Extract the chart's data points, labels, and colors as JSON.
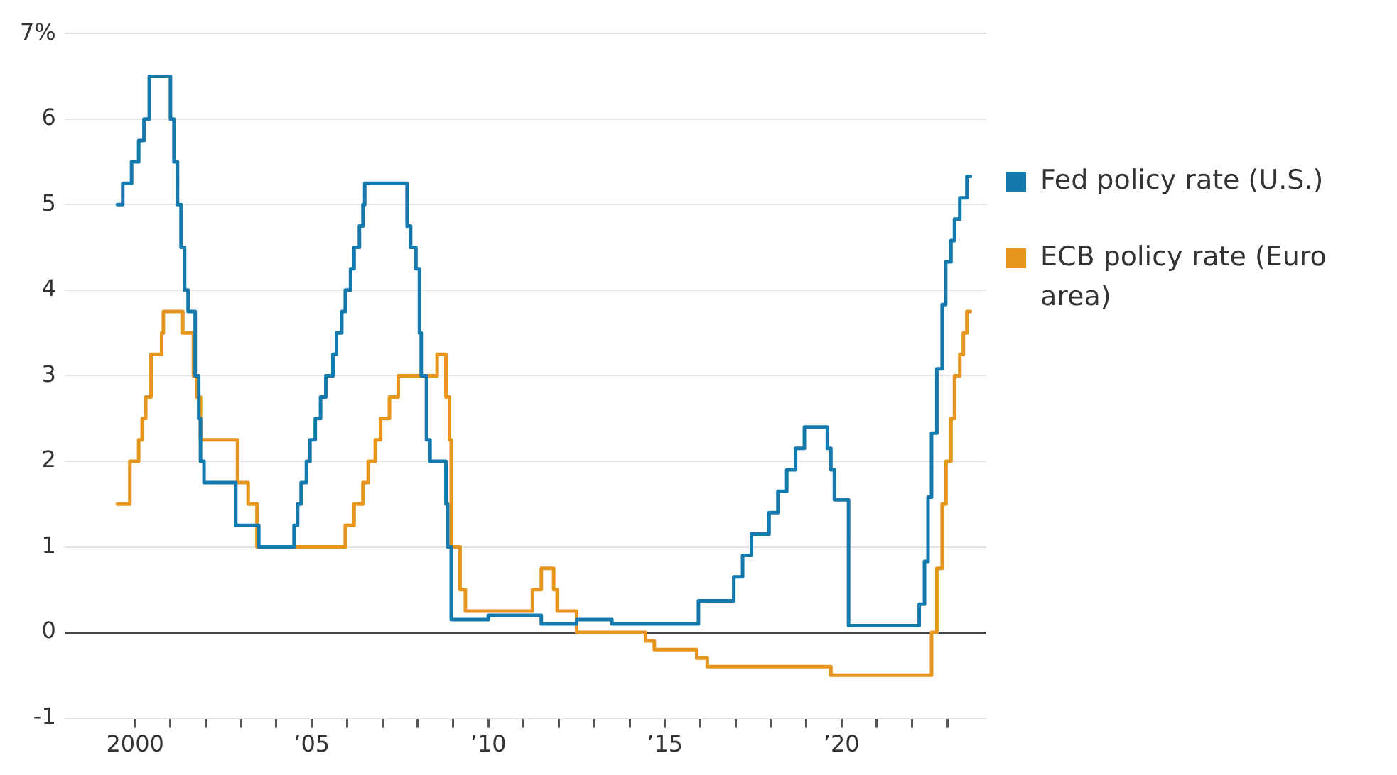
{
  "chart_data": {
    "type": "step",
    "xlim": [
      1998,
      2024.1
    ],
    "ylim": [
      -1,
      7
    ],
    "xticks": [
      2000,
      {
        "value": 2001,
        "label": null
      },
      {
        "value": 2002,
        "label": null
      },
      {
        "value": 2003,
        "label": null
      },
      {
        "value": 2004,
        "label": null
      },
      {
        "value": 2005,
        "label": "’05"
      },
      {
        "value": 2006,
        "label": null
      },
      {
        "value": 2007,
        "label": null
      },
      {
        "value": 2008,
        "label": null
      },
      {
        "value": 2009,
        "label": null
      },
      {
        "value": 2010,
        "label": "’10"
      },
      {
        "value": 2011,
        "label": null
      },
      {
        "value": 2012,
        "label": null
      },
      {
        "value": 2013,
        "label": null
      },
      {
        "value": 2014,
        "label": null
      },
      {
        "value": 2015,
        "label": "’15"
      },
      {
        "value": 2016,
        "label": null
      },
      {
        "value": 2017,
        "label": null
      },
      {
        "value": 2018,
        "label": null
      },
      {
        "value": 2019,
        "label": null
      },
      {
        "value": 2020,
        "label": "’20"
      },
      {
        "value": 2021,
        "label": null
      },
      {
        "value": 2022,
        "label": null
      },
      {
        "value": 2023,
        "label": null
      }
    ],
    "yticks": [
      -1,
      0,
      1,
      2,
      3,
      4,
      5,
      6,
      {
        "value": 7,
        "label": "7%"
      }
    ],
    "grid": "y",
    "legend": "right",
    "marker": "none",
    "line_style": "solid",
    "series": [
      {
        "name": "Fed policy rate (U.S.)",
        "color": "#1479ad",
        "x": [
          1999.5,
          1999.65,
          1999.9,
          2000.1,
          2000.25,
          2000.4,
          2001.0,
          2001.1,
          2001.2,
          2001.3,
          2001.4,
          2001.5,
          2001.7,
          2001.8,
          2001.85,
          2001.95,
          2002.85,
          2003.5,
          2004.5,
          2004.6,
          2004.7,
          2004.85,
          2004.95,
          2005.1,
          2005.25,
          2005.4,
          2005.6,
          2005.7,
          2005.85,
          2005.95,
          2006.1,
          2006.2,
          2006.35,
          2006.45,
          2006.5,
          2007.7,
          2007.8,
          2007.95,
          2008.05,
          2008.1,
          2008.25,
          2008.35,
          2008.8,
          2008.85,
          2008.95,
          2010,
          2011.5,
          2012.5,
          2013.5,
          2015.95,
          2016.95,
          2017.2,
          2017.45,
          2017.95,
          2018.2,
          2018.45,
          2018.7,
          2018.95,
          2019.6,
          2019.7,
          2019.8,
          2020.2,
          2022.2,
          2022.35,
          2022.45,
          2022.55,
          2022.7,
          2022.85,
          2022.95,
          2023.1,
          2023.2,
          2023.35,
          2023.55,
          2023.65
        ],
        "values": [
          5.0,
          5.25,
          5.5,
          5.75,
          6.0,
          6.5,
          6.0,
          5.5,
          5.0,
          4.5,
          4.0,
          3.75,
          3.0,
          2.5,
          2.0,
          1.75,
          1.25,
          1.0,
          1.25,
          1.5,
          1.75,
          2.0,
          2.25,
          2.5,
          2.75,
          3.0,
          3.25,
          3.5,
          3.75,
          4.0,
          4.25,
          4.5,
          4.75,
          5.0,
          5.25,
          4.75,
          4.5,
          4.25,
          3.5,
          3.0,
          2.25,
          2.0,
          1.5,
          1.0,
          0.15,
          0.2,
          0.1,
          0.15,
          0.1,
          0.37,
          0.65,
          0.9,
          1.15,
          1.4,
          1.65,
          1.9,
          2.15,
          2.4,
          2.15,
          1.9,
          1.55,
          0.08,
          0.33,
          0.83,
          1.58,
          2.33,
          3.08,
          3.83,
          4.33,
          4.58,
          4.83,
          5.08,
          5.33,
          5.33
        ]
      },
      {
        "name": "ECB policy rate (Euro area)",
        "color": "#e6961e",
        "x": [
          1999.5,
          1999.85,
          2000.1,
          2000.2,
          2000.3,
          2000.45,
          2000.75,
          2000.8,
          2001.35,
          2001.65,
          2001.75,
          2001.85,
          2002.9,
          2003.2,
          2003.45,
          2005.95,
          2006.2,
          2006.45,
          2006.6,
          2006.8,
          2006.95,
          2007.2,
          2007.45,
          2008.55,
          2008.8,
          2008.9,
          2008.95,
          2009.2,
          2009.35,
          2011.25,
          2011.5,
          2011.85,
          2011.95,
          2012.5,
          2014.45,
          2014.7,
          2015.9,
          2016.2,
          2019.7,
          2022.55,
          2022.7,
          2022.85,
          2022.96,
          2023.1,
          2023.2,
          2023.35,
          2023.45,
          2023.55,
          2023.65
        ],
        "values": [
          1.5,
          2.0,
          2.25,
          2.5,
          2.75,
          3.25,
          3.5,
          3.75,
          3.5,
          3.0,
          2.75,
          2.25,
          1.75,
          1.5,
          1.0,
          1.25,
          1.5,
          1.75,
          2.0,
          2.25,
          2.5,
          2.75,
          3.0,
          3.25,
          2.75,
          2.25,
          1.0,
          0.5,
          0.25,
          0.5,
          0.75,
          0.5,
          0.25,
          0.0,
          -0.1,
          -0.2,
          -0.3,
          -0.4,
          -0.5,
          0.0,
          0.75,
          1.5,
          2.0,
          2.5,
          3.0,
          3.25,
          3.5,
          3.75,
          3.75
        ]
      }
    ]
  }
}
